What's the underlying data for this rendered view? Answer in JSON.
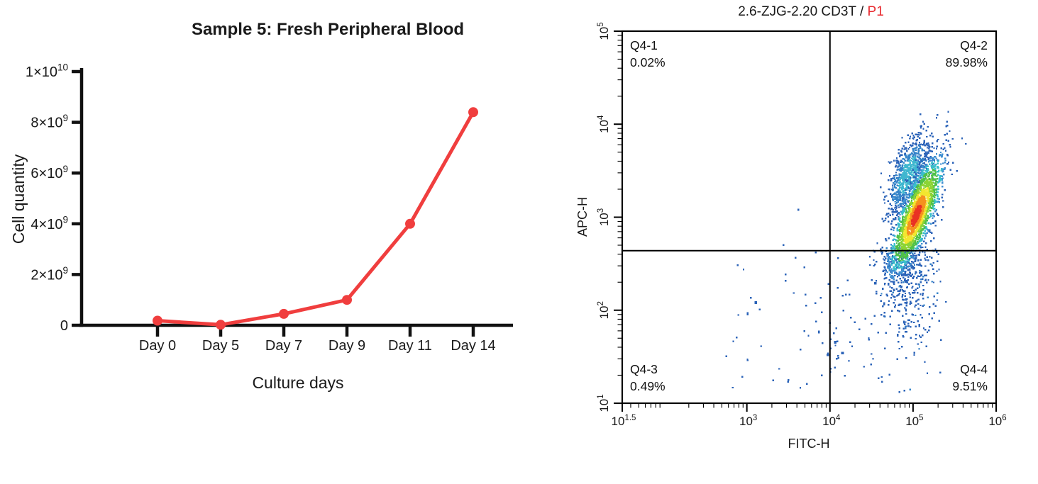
{
  "chart_data": [
    {
      "id": "growth-curve",
      "type": "line",
      "title": "Sample 5: Fresh Peripheral Blood",
      "xlabel": "Culture days",
      "ylabel": "Cell quantity",
      "categories": [
        "Day 0",
        "Day 5",
        "Day 7",
        "Day 9",
        "Day 11",
        "Day 14"
      ],
      "values": [
        180000000,
        20000000,
        450000000,
        1000000000,
        4000000000,
        8400000000
      ],
      "ylim": [
        0,
        10000000000
      ],
      "yticks": [
        {
          "v": 0,
          "label": "0"
        },
        {
          "v": 2000000000,
          "label": "2×10^9"
        },
        {
          "v": 4000000000,
          "label": "4×10^9"
        },
        {
          "v": 6000000000,
          "label": "6×10^9"
        },
        {
          "v": 8000000000,
          "label": "8×10^9"
        },
        {
          "v": 10000000000,
          "label": "1×10^10"
        }
      ],
      "grid": false,
      "line_color": "#F03E3E",
      "axis_color": "#111111",
      "marker": "circle"
    },
    {
      "id": "flow-cytometry",
      "type": "scatter",
      "title": {
        "black": "2.6-ZJG-2.20 CD3T / ",
        "red": "P1",
        "red_color": "#E8282D"
      },
      "xlabel": "FITC-H",
      "ylabel": "APC-H",
      "x_log_range": [
        1.5,
        6
      ],
      "y_log_range": [
        1,
        5
      ],
      "xticks": [
        {
          "log": 1.5,
          "label": "10^1.5"
        },
        {
          "log": 3,
          "label": "10^3"
        },
        {
          "log": 4,
          "label": "10^4"
        },
        {
          "log": 5,
          "label": "10^5"
        },
        {
          "log": 6,
          "label": "10^6"
        }
      ],
      "yticks": [
        {
          "log": 1,
          "label": "10^1"
        },
        {
          "log": 2,
          "label": "10^2"
        },
        {
          "log": 3,
          "label": "10^3"
        },
        {
          "log": 4,
          "label": "10^4"
        },
        {
          "log": 5,
          "label": "10^5"
        }
      ],
      "gates": {
        "x_log": 4.0,
        "y_log": 2.64
      },
      "quadrants": {
        "q1": {
          "name": "Q4-1",
          "pct": "0.02%"
        },
        "q2": {
          "name": "Q4-2",
          "pct": "89.98%"
        },
        "q3": {
          "name": "Q4-3",
          "pct": "0.49%"
        },
        "q4": {
          "name": "Q4-4",
          "pct": "9.51%"
        }
      },
      "seed": 42,
      "density_scale": {
        "thresholds": [
          0.15,
          0.5,
          1.0,
          1.7,
          2.7,
          3.9,
          5.3
        ],
        "colors": [
          "#E93223",
          "#F5911E",
          "#F2E62F",
          "#8CD435",
          "#4FC04A",
          "#3ABFCB",
          "#4090D2"
        ],
        "base": "#2B63B8"
      },
      "lobe_scale": {
        "thresholds": [
          0.8,
          2.2
        ],
        "colors": [
          "#3FB7CF",
          "#3584C9"
        ],
        "base": "#2B63B8"
      },
      "populations": {
        "main": {
          "n": 2200,
          "mx": 5.04,
          "my": 3.02,
          "sx": 0.155,
          "sy": 0.3,
          "rho": 0.78
        },
        "upper_lobe": {
          "n": 800,
          "mx": 4.94,
          "my": 3.45,
          "sx": 0.13,
          "sy": 0.22,
          "rho": 0.6
        },
        "tail": {
          "n": 430,
          "mx": 4.94,
          "sx": 0.16,
          "top": 2.68,
          "spread": 0.52,
          "min": 1.12
        },
        "sparse": [
          {
            "n": 40,
            "x": [
              2.72,
              3.93
            ],
            "y": [
              1.15,
              2.62
            ]
          },
          {
            "n": 55,
            "x": [
              3.95,
              4.72
            ],
            "y": [
              1.2,
              2.62
            ]
          }
        ],
        "extra_points": [
          [
            3.62,
            3.08
          ],
          [
            3.44,
            2.7
          ],
          [
            3.83,
            2.62
          ]
        ]
      }
    }
  ]
}
